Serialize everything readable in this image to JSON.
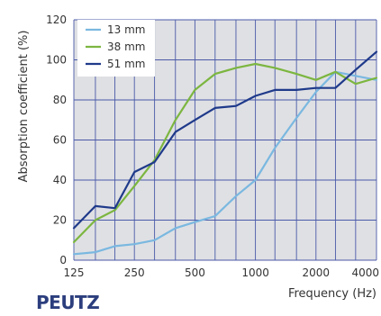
{
  "brand": {
    "logo_text": "PEUTZ",
    "color": "#2c3e7d"
  },
  "colors": {
    "plot_background": "#dfe0e4",
    "grid": "#4a5aa8"
  },
  "chart_data": {
    "type": "line",
    "xlabel": "Frequency (Hz)",
    "ylabel": "Absorption coefficient (%)",
    "x_scale": "log",
    "x_ticks": [
      125,
      250,
      500,
      1000,
      2000,
      4000
    ],
    "x_tick_labels": [
      "125",
      "250",
      "500",
      "1000",
      "2000",
      "4000"
    ],
    "ylim": [
      0,
      120
    ],
    "y_ticks": [
      0,
      20,
      40,
      60,
      80,
      100,
      120
    ],
    "y_tick_labels": [
      "0",
      "20",
      "40",
      "60",
      "80",
      "100",
      "120"
    ],
    "grid": true,
    "legend_position": "top-left",
    "x": [
      125,
      160,
      200,
      250,
      315,
      400,
      500,
      630,
      800,
      1000,
      1250,
      1600,
      2000,
      2500,
      3150,
      4000
    ],
    "series": [
      {
        "name": "13 mm",
        "color": "#7ab8e0",
        "values": [
          3,
          4,
          7,
          8,
          10,
          16,
          19,
          22,
          32,
          40,
          56,
          71,
          84,
          94,
          92,
          90
        ]
      },
      {
        "name": "38 mm",
        "color": "#7cb640",
        "values": [
          9,
          20,
          25,
          37,
          50,
          70,
          85,
          93,
          96,
          98,
          96,
          93,
          90,
          94,
          88,
          91
        ]
      },
      {
        "name": "51 mm",
        "color": "#1f3a8a",
        "values": [
          16,
          27,
          26,
          44,
          49,
          64,
          70,
          76,
          77,
          82,
          85,
          85,
          86,
          86,
          95,
          104
        ]
      }
    ]
  }
}
